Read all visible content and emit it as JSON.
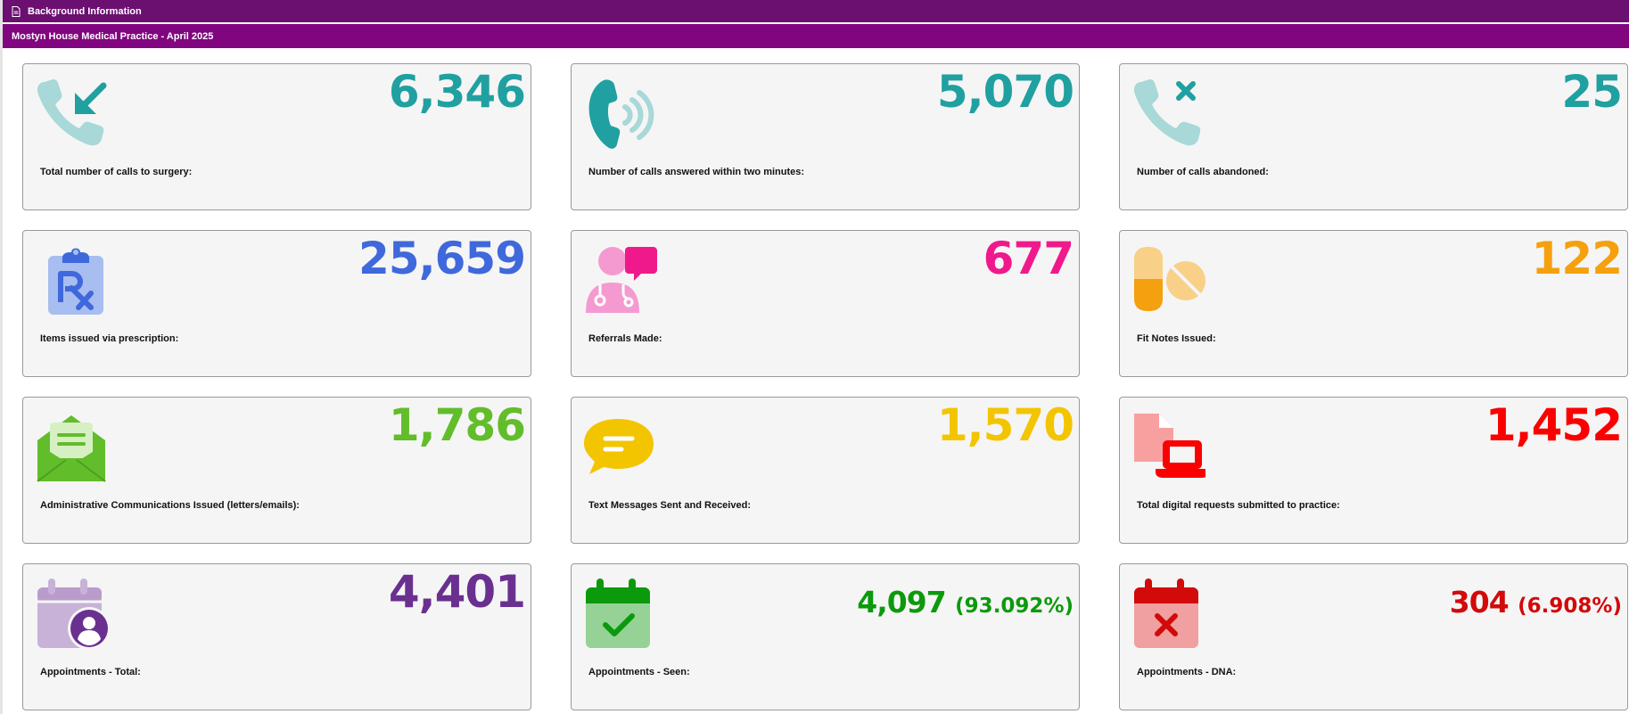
{
  "header": {
    "section_label": "Background Information",
    "title": "Mostyn House Medical Practice - April 2025"
  },
  "colors": {
    "teal": "#20a0a0",
    "blue": "#3f68dc",
    "pink": "#f0198c",
    "orange": "#f5a00f",
    "green": "#62bd2a",
    "yellow": "#f2c500",
    "red": "#fa0000",
    "purple": "#6a3090",
    "dark_green": "#0c9a0c",
    "dark_red": "#d20a0a"
  },
  "cards": [
    {
      "value": "6,346",
      "label": "Total number of calls to surgery:",
      "icon": "incoming-call-icon"
    },
    {
      "value": "5,070",
      "label": "Number of calls answered within two minutes:",
      "icon": "ringing-phone-icon"
    },
    {
      "value": "25",
      "label": "Number of calls abandoned:",
      "icon": "missed-call-icon"
    },
    {
      "value": "25,659",
      "label": "Items issued via prescription:",
      "icon": "prescription-clipboard-icon"
    },
    {
      "value": "677",
      "label": "Referrals Made:",
      "icon": "doctor-chat-icon"
    },
    {
      "value": "122",
      "label": "Fit Notes Issued:",
      "icon": "pills-icon"
    },
    {
      "value": "1,786",
      "label": "Administrative Communications Issued (letters/emails):",
      "icon": "open-envelope-icon"
    },
    {
      "value": "1,570",
      "label": "Text Messages Sent and Received:",
      "icon": "speech-bubble-icon"
    },
    {
      "value": "1,452",
      "label": "Total digital requests submitted to practice:",
      "icon": "document-laptop-icon"
    },
    {
      "value": "4,401",
      "label": "Appointments - Total:",
      "icon": "calendar-person-icon"
    },
    {
      "value": "4,097",
      "pct": "(93.092%)",
      "label": "Appointments - Seen:",
      "icon": "calendar-check-icon"
    },
    {
      "value": "304",
      "pct": "(6.908%)",
      "label": "Appointments - DNA:",
      "icon": "calendar-cross-icon"
    }
  ]
}
